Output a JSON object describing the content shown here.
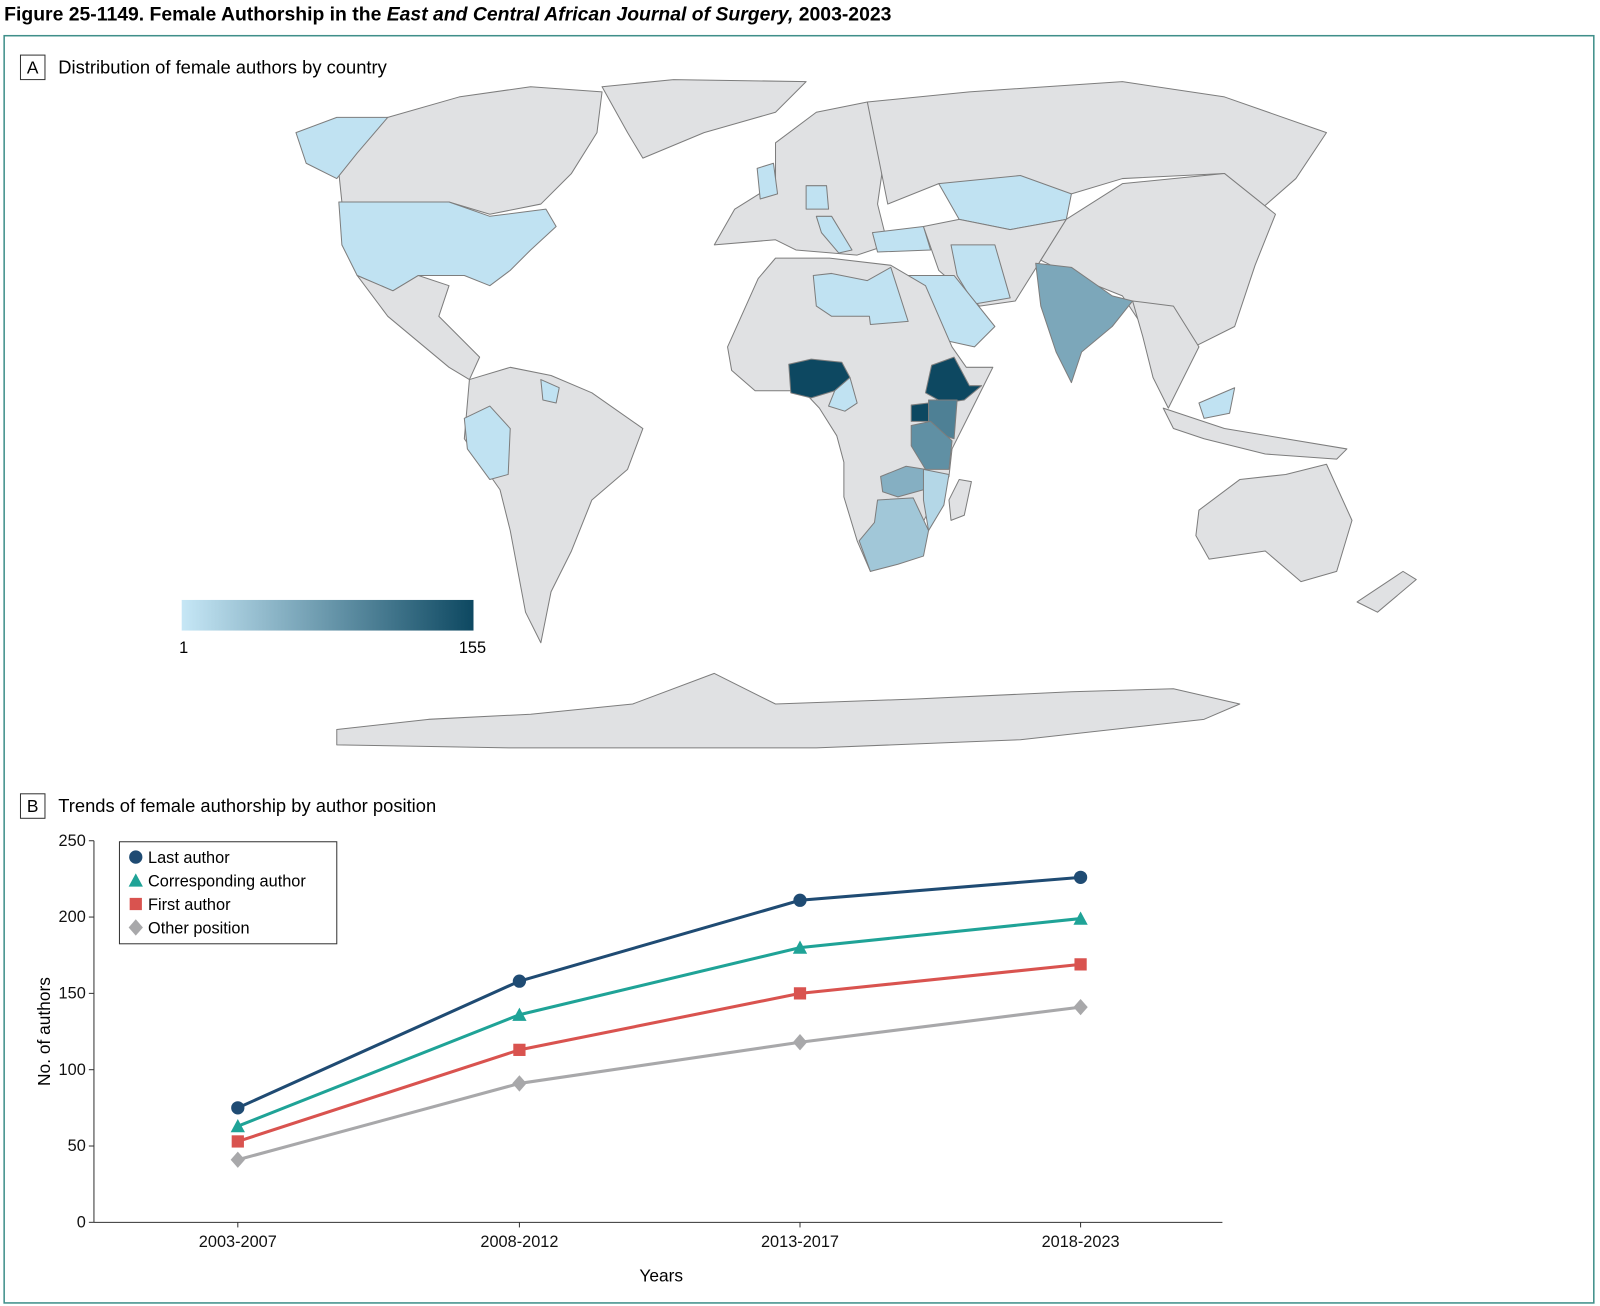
{
  "figure": {
    "title_prefix": "Figure 25-1149. Female Authorship in the ",
    "title_italic": "East and Central African Journal of Surgery,",
    "title_suffix": " 2003-2023",
    "frame_color": "#3f8f8a"
  },
  "panel_a": {
    "letter": "A",
    "title": "Distribution of female authors by country",
    "colorbar": {
      "min_label": "1",
      "max_label": "155",
      "min": 1,
      "max": 155,
      "low_color": "#c6e7f6",
      "high_color": "#0d4861"
    },
    "land_color": "#e0e1e3",
    "border_color": "#7d7d7d"
  },
  "chart_data": {
    "type": "line",
    "panel_letter": "B",
    "title": "Trends of female authorship by author position",
    "xlabel": "Years",
    "ylabel": "No. of authors",
    "categories": [
      "2003-2007",
      "2008-2012",
      "2013-2017",
      "2018-2023"
    ],
    "ylim": [
      0,
      250
    ],
    "yticks": [
      "0",
      "50",
      "100",
      "150",
      "200",
      "250"
    ],
    "grid": false,
    "legend_position": "top-left",
    "series": [
      {
        "name": "Last author",
        "marker": "circle",
        "color": "#1f4b73",
        "values": [
          75,
          158,
          211,
          226
        ]
      },
      {
        "name": "Corresponding author",
        "marker": "triangle",
        "color": "#1fa397",
        "values": [
          63,
          136,
          180,
          199
        ]
      },
      {
        "name": "First author",
        "marker": "square",
        "color": "#d9534f",
        "values": [
          53,
          113,
          150,
          169
        ]
      },
      {
        "name": "Other position",
        "marker": "diamond",
        "color": "#a8a8aa",
        "values": [
          41,
          91,
          118,
          141
        ]
      }
    ]
  }
}
